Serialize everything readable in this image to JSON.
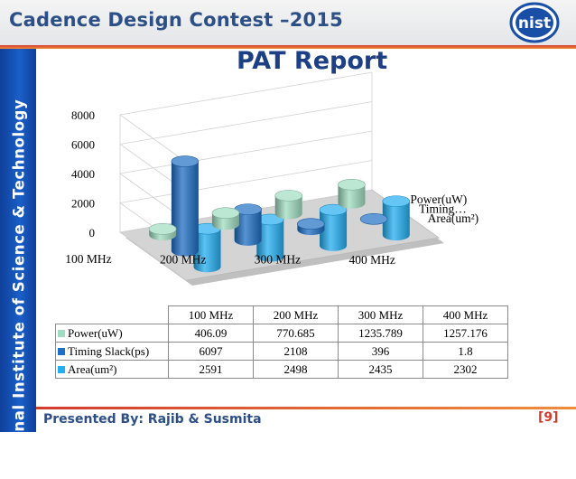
{
  "header": {
    "title": "Cadence Design Contest –2015"
  },
  "logo": {
    "text": "nist",
    "color": "#1a4fa8"
  },
  "sidebar": {
    "text": "National Institute of Science & Technology"
  },
  "slide": {
    "title": "PAT Report"
  },
  "chart_data": {
    "type": "bar",
    "subtype": "3d-cylinder",
    "categories": [
      "100 MHz",
      "200 MHz",
      "300 MHz",
      "400 MHz"
    ],
    "series": [
      {
        "name": "Power(uW)",
        "values": [
          406.09,
          770.685,
          1235.789,
          1257.176
        ],
        "color": "#9fdcc0"
      },
      {
        "name": "Timing Slack(ps)",
        "depth_label": "Timing…",
        "values": [
          6097,
          2108,
          396,
          1.8
        ],
        "color": "#1f6fc4"
      },
      {
        "name": "Area(um²)",
        "values": [
          2591,
          2498,
          2435,
          2302
        ],
        "color": "#23aef0"
      }
    ],
    "y_ticks": [
      "0",
      "2000",
      "4000",
      "6000",
      "8000"
    ],
    "ylim": [
      0,
      8000
    ],
    "grid": true,
    "legend": "data-table"
  },
  "table": {
    "headers": [
      "100 MHz",
      "200 MHz",
      "300 MHz",
      "400 MHz"
    ],
    "rows": [
      {
        "label": "Power(uW)",
        "cells": [
          "406.09",
          "770.685",
          "1235.789",
          "1257.176"
        ]
      },
      {
        "label": "Timing Slack(ps)",
        "cells": [
          "6097",
          "2108",
          "396",
          "1.8"
        ]
      },
      {
        "label": "Area(um²)",
        "cells": [
          "2591",
          "2498",
          "2435",
          "2302"
        ]
      }
    ]
  },
  "footer": {
    "presented_by": "Presented By: Rajib & Susmita",
    "page": "[9]"
  }
}
